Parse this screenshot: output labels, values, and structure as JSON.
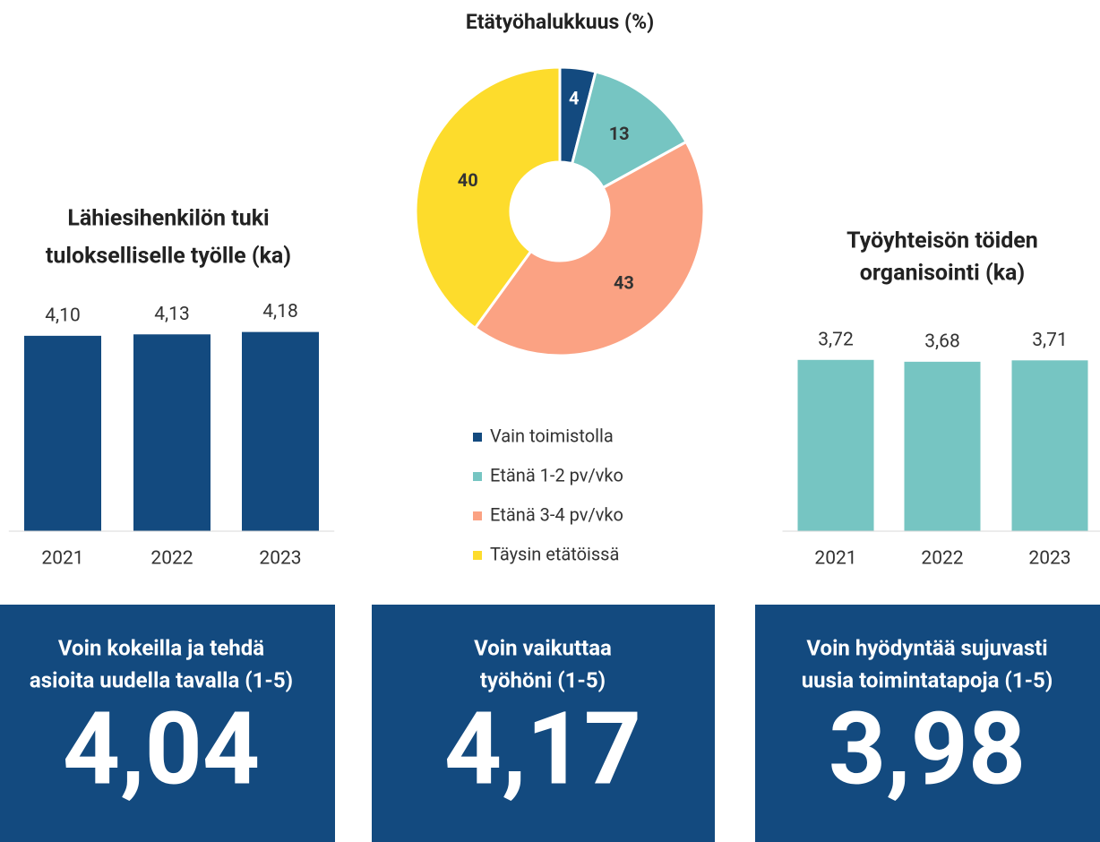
{
  "chart_data": [
    {
      "type": "bar",
      "title": [
        "Lähiesihenkilön tuki",
        "tulokselliselle työlle (ka)"
      ],
      "categories": [
        "2021",
        "2022",
        "2023"
      ],
      "values": [
        4.1,
        4.13,
        4.18
      ],
      "value_labels": [
        "4,10",
        "4,13",
        "4,18"
      ],
      "color": "#134a7f"
    },
    {
      "type": "donut",
      "title": [
        "Etätyöhalukkuus (%)"
      ],
      "categories": [
        "Vain toimistolla",
        "Etänä 1-2 pv/vko",
        "Etänä 3-4 pv/vko",
        "Täysin etätöissä"
      ],
      "values": [
        4,
        13,
        43,
        40
      ],
      "colors": [
        "#134a7f",
        "#76c5c2",
        "#fba283",
        "#fddc2c"
      ],
      "legend": "bottom"
    },
    {
      "type": "bar",
      "title": [
        "Työyhteisön töiden",
        "organisointi (ka)"
      ],
      "categories": [
        "2021",
        "2022",
        "2023"
      ],
      "values": [
        3.72,
        3.68,
        3.71
      ],
      "value_labels": [
        "3,72",
        "3,68",
        "3,71"
      ],
      "color": "#76c5c2"
    }
  ],
  "kpis": [
    {
      "title": [
        "Voin kokeilla ja tehdä",
        "asioita uudella tavalla (1-5)"
      ],
      "value": "4,04"
    },
    {
      "title": [
        "Voin vaikuttaa",
        "työhöni (1-5)"
      ],
      "value": "4,17"
    },
    {
      "title": [
        "Voin hyödyntää sujuvasti",
        "uusia toimintatapoja (1-5)"
      ],
      "value": "3,98"
    }
  ]
}
